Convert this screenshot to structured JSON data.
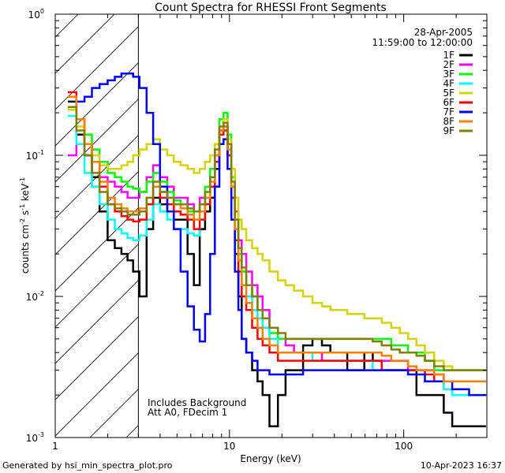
{
  "chart_data": {
    "type": "line",
    "title": "Count Spectra for RHESSI Front Segments",
    "xlabel": "Energy (keV)",
    "ylabel": "counts cm-2 s-1 keV-1",
    "ylabel_parts": {
      "base": "counts cm",
      "e1": "-2",
      "mid": " s",
      "e2": "-1",
      "mid2": " keV",
      "e3": "-1"
    },
    "xscale": "log",
    "yscale": "log",
    "xlim": [
      1,
      300
    ],
    "ylim": [
      0.001,
      1
    ],
    "x_ticks": [
      {
        "value": 1,
        "label": "1"
      },
      {
        "value": 10,
        "label": "10"
      },
      {
        "value": 100,
        "label": "100"
      }
    ],
    "y_ticks": [
      {
        "value": 0.001,
        "base": "10",
        "exp": "-3"
      },
      {
        "value": 0.01,
        "base": "10",
        "exp": "-2"
      },
      {
        "value": 0.1,
        "base": "10",
        "exp": "-1"
      },
      {
        "value": 1,
        "base": "10",
        "exp": "0"
      }
    ],
    "date": "28-Apr-2005",
    "time_range": "11:59:00 to 12:00:00",
    "shaded_region_keV": [
      1,
      3
    ],
    "annotations": [
      "Includes Background",
      "Att A0, FDecim 1"
    ],
    "footer_left": "Generated by hsi_min_spectra_plot.pro",
    "footer_right": "10-Apr-2023 16:37",
    "legend_position": "top-right",
    "energy_centers": [
      1.25,
      1.4,
      1.55,
      1.7,
      1.9,
      2.1,
      2.3,
      2.5,
      2.7,
      2.9,
      3.2,
      3.5,
      3.8,
      4.2,
      4.6,
      5.0,
      5.5,
      6.0,
      6.5,
      7.0,
      7.5,
      8.0,
      8.5,
      9.0,
      9.5,
      10.0,
      10.5,
      11.0,
      11.5,
      12.0,
      13.0,
      14.0,
      15.0,
      16.0,
      18.0,
      20.0,
      22.0,
      25.0,
      28.0,
      32.0,
      36.0,
      40.0,
      45.0,
      50.0,
      56.0,
      63.0,
      70.0,
      80.0,
      90.0,
      100.0,
      112.0,
      125.0,
      140.0,
      160.0,
      180.0,
      200.0,
      225.0,
      250.0,
      280.0
    ],
    "series": [
      {
        "name": "1F",
        "color": "#000000",
        "values": [
          0.24,
          0.14,
          0.1,
          0.07,
          0.04,
          0.025,
          0.022,
          0.02,
          0.018,
          0.015,
          0.01,
          0.03,
          0.05,
          0.045,
          0.04,
          0.035,
          0.035,
          0.02,
          0.012,
          0.03,
          0.04,
          0.05,
          0.08,
          0.15,
          0.16,
          0.1,
          0.05,
          0.02,
          0.01,
          0.005,
          0.004,
          0.003,
          0.0025,
          0.002,
          0.0012,
          0.002,
          0.003,
          0.003,
          0.0045,
          0.005,
          0.0045,
          0.004,
          0.004,
          0.003,
          0.003,
          0.004,
          0.0035,
          0.003,
          0.003,
          0.003,
          0.003,
          0.002,
          0.002,
          0.002,
          0.0015,
          0.0012,
          0.0012,
          0.0012,
          0.0012
        ]
      },
      {
        "name": "2F",
        "color": "#ff00ff",
        "values": [
          0.1,
          0.12,
          0.1,
          0.09,
          0.07,
          0.065,
          0.06,
          0.055,
          0.05,
          0.05,
          0.055,
          0.07,
          0.085,
          0.07,
          0.06,
          0.05,
          0.05,
          0.045,
          0.04,
          0.05,
          0.06,
          0.07,
          0.1,
          0.15,
          0.16,
          0.12,
          0.07,
          0.04,
          0.025,
          0.02,
          0.015,
          0.012,
          0.01,
          0.008,
          0.006,
          0.005,
          0.0045,
          0.004,
          0.004,
          0.004,
          0.0035,
          0.0035,
          0.0035,
          0.0035,
          0.0035,
          0.0035,
          0.0035,
          0.0035,
          0.0035,
          0.0035,
          0.003,
          0.003,
          0.003,
          0.0028,
          0.0025,
          0.0025,
          0.0025,
          0.0025,
          0.0025
        ]
      },
      {
        "name": "3F",
        "color": "#00ff00",
        "values": [
          0.22,
          0.18,
          0.14,
          0.11,
          0.09,
          0.075,
          0.07,
          0.065,
          0.06,
          0.058,
          0.055,
          0.065,
          0.075,
          0.065,
          0.055,
          0.048,
          0.045,
          0.04,
          0.035,
          0.045,
          0.06,
          0.08,
          0.12,
          0.18,
          0.2,
          0.14,
          0.07,
          0.035,
          0.02,
          0.015,
          0.012,
          0.01,
          0.008,
          0.006,
          0.0055,
          0.005,
          0.005,
          0.005,
          0.005,
          0.005,
          0.005,
          0.005,
          0.005,
          0.005,
          0.005,
          0.005,
          0.005,
          0.005,
          0.0045,
          0.0045,
          0.004,
          0.004,
          0.0035,
          0.003,
          0.003,
          0.003,
          0.003,
          0.003,
          0.003
        ]
      },
      {
        "name": "4F",
        "color": "#00ffff",
        "values": [
          0.19,
          0.12,
          0.075,
          0.06,
          0.045,
          0.035,
          0.03,
          0.028,
          0.026,
          0.025,
          0.027,
          0.035,
          0.045,
          0.04,
          0.035,
          0.03,
          0.03,
          0.028,
          0.027,
          0.035,
          0.05,
          0.07,
          0.1,
          0.14,
          0.15,
          0.1,
          0.05,
          0.025,
          0.015,
          0.012,
          0.01,
          0.008,
          0.007,
          0.006,
          0.005,
          0.004,
          0.004,
          0.004,
          0.004,
          0.0035,
          0.0035,
          0.0035,
          0.0035,
          0.0035,
          0.0035,
          0.0035,
          0.003,
          0.003,
          0.003,
          0.003,
          0.003,
          0.003,
          0.0025,
          0.0025,
          0.0022,
          0.002,
          0.002,
          0.002,
          0.002
        ]
      },
      {
        "name": "5F",
        "color": "#d4d400",
        "values": [
          0.21,
          0.16,
          0.12,
          0.1,
          0.085,
          0.08,
          0.08,
          0.085,
          0.09,
          0.1,
          0.11,
          0.12,
          0.13,
          0.11,
          0.1,
          0.09,
          0.085,
          0.08,
          0.075,
          0.08,
          0.09,
          0.1,
          0.12,
          0.16,
          0.18,
          0.13,
          0.08,
          0.05,
          0.035,
          0.03,
          0.025,
          0.022,
          0.02,
          0.018,
          0.015,
          0.013,
          0.012,
          0.011,
          0.01,
          0.009,
          0.0085,
          0.008,
          0.008,
          0.0075,
          0.0075,
          0.007,
          0.007,
          0.0065,
          0.006,
          0.0055,
          0.005,
          0.0045,
          0.004,
          0.0035,
          0.0032,
          0.003,
          0.003,
          0.003,
          0.003
        ]
      },
      {
        "name": "6F",
        "color": "#ff0000",
        "values": [
          0.28,
          0.18,
          0.12,
          0.09,
          0.06,
          0.045,
          0.04,
          0.037,
          0.035,
          0.034,
          0.035,
          0.045,
          0.06,
          0.05,
          0.045,
          0.04,
          0.038,
          0.035,
          0.03,
          0.035,
          0.045,
          0.06,
          0.09,
          0.14,
          0.15,
          0.1,
          0.05,
          0.025,
          0.015,
          0.01,
          0.008,
          0.006,
          0.005,
          0.0045,
          0.004,
          0.0035,
          0.0035,
          0.0035,
          0.0035,
          0.0035,
          0.0035,
          0.0035,
          0.0035,
          0.0035,
          0.0035,
          0.0035,
          0.0035,
          0.003,
          0.003,
          0.003,
          0.003,
          0.003,
          0.0028,
          0.0025,
          0.0025,
          0.0025,
          0.0025,
          0.0025,
          0.0025
        ]
      },
      {
        "name": "7F",
        "color": "#0000ff",
        "values": [
          0.22,
          0.24,
          0.26,
          0.3,
          0.32,
          0.34,
          0.36,
          0.38,
          0.38,
          0.36,
          0.3,
          0.2,
          0.12,
          0.06,
          0.04,
          0.03,
          0.015,
          0.0085,
          0.0058,
          0.0048,
          0.0075,
          0.02,
          0.06,
          0.12,
          0.13,
          0.08,
          0.035,
          0.015,
          0.008,
          0.005,
          0.004,
          0.0035,
          0.003,
          0.003,
          0.0028,
          0.0028,
          0.0028,
          0.0028,
          0.003,
          0.003,
          0.003,
          0.003,
          0.003,
          0.003,
          0.003,
          0.003,
          0.003,
          0.003,
          0.003,
          0.003,
          0.0028,
          0.0028,
          0.0025,
          0.0025,
          0.0025,
          0.0022,
          0.0022,
          0.002,
          0.002
        ]
      },
      {
        "name": "8F",
        "color": "#ff8000",
        "values": [
          0.26,
          0.18,
          0.12,
          0.09,
          0.065,
          0.05,
          0.045,
          0.042,
          0.04,
          0.04,
          0.042,
          0.05,
          0.06,
          0.055,
          0.05,
          0.045,
          0.042,
          0.038,
          0.035,
          0.04,
          0.05,
          0.065,
          0.1,
          0.15,
          0.16,
          0.11,
          0.06,
          0.03,
          0.018,
          0.012,
          0.009,
          0.007,
          0.006,
          0.005,
          0.0045,
          0.004,
          0.004,
          0.004,
          0.004,
          0.004,
          0.004,
          0.004,
          0.004,
          0.004,
          0.004,
          0.004,
          0.004,
          0.0038,
          0.0035,
          0.0035,
          0.0032,
          0.003,
          0.003,
          0.0028,
          0.0025,
          0.0025,
          0.0025,
          0.0025,
          0.0025
        ]
      },
      {
        "name": "9F",
        "color": "#808000",
        "values": [
          0.22,
          0.15,
          0.1,
          0.075,
          0.055,
          0.045,
          0.042,
          0.04,
          0.038,
          0.038,
          0.04,
          0.05,
          0.065,
          0.055,
          0.05,
          0.045,
          0.045,
          0.042,
          0.04,
          0.045,
          0.055,
          0.07,
          0.11,
          0.16,
          0.17,
          0.12,
          0.065,
          0.035,
          0.022,
          0.016,
          0.012,
          0.01,
          0.008,
          0.007,
          0.006,
          0.0055,
          0.005,
          0.005,
          0.005,
          0.005,
          0.005,
          0.005,
          0.005,
          0.005,
          0.005,
          0.005,
          0.0048,
          0.0045,
          0.0042,
          0.004,
          0.004,
          0.0038,
          0.0035,
          0.0032,
          0.003,
          0.003,
          0.003,
          0.003,
          0.003
        ]
      }
    ]
  }
}
